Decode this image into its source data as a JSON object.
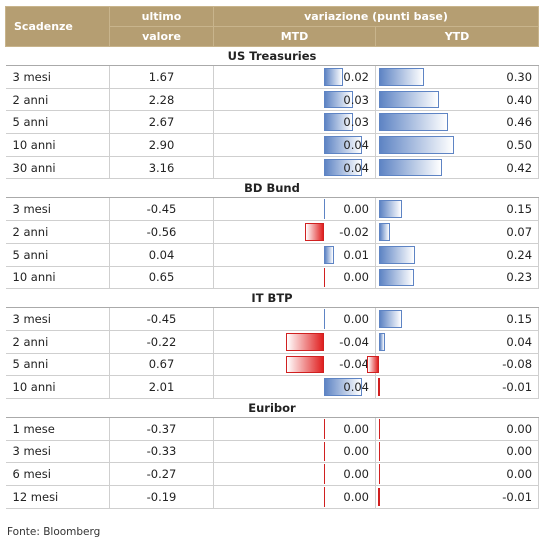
{
  "header": {
    "scadenze": "Scadenze",
    "ultimo": "ultimo",
    "valore": "valore",
    "variazione": "variazione (punti base)",
    "mtd": "MTD",
    "ytd": "YTD"
  },
  "bar_colors": {
    "positive": "#5e84c4",
    "negative": "#e02020"
  },
  "sections": [
    {
      "title": "US Treasuries",
      "rows": [
        {
          "name": "3 mesi",
          "value": "1.67",
          "mtd": "0.02",
          "ytd": "0.30"
        },
        {
          "name": "2 anni",
          "value": "2.28",
          "mtd": "0.03",
          "ytd": "0.40"
        },
        {
          "name": "5 anni",
          "value": "2.67",
          "mtd": "0.03",
          "ytd": "0.46"
        },
        {
          "name": "10 anni",
          "value": "2.90",
          "mtd": "0.04",
          "ytd": "0.50"
        },
        {
          "name": "30 anni",
          "value": "3.16",
          "mtd": "0.04",
          "ytd": "0.42"
        }
      ]
    },
    {
      "title": "BD Bund",
      "rows": [
        {
          "name": "3 mesi",
          "value": "-0.45",
          "mtd": "0.00",
          "ytd": "0.15"
        },
        {
          "name": "2 anni",
          "value": "-0.56",
          "mtd": "-0.02",
          "ytd": "0.07"
        },
        {
          "name": "5 anni",
          "value": "0.04",
          "mtd": "0.01",
          "ytd": "0.24"
        },
        {
          "name": "10 anni",
          "value": "0.65",
          "mtd": "0.00",
          "ytd": "0.23"
        }
      ]
    },
    {
      "title": "IT BTP",
      "rows": [
        {
          "name": "3 mesi",
          "value": "-0.45",
          "mtd": "0.00",
          "ytd": "0.15"
        },
        {
          "name": "2 anni",
          "value": "-0.22",
          "mtd": "-0.04",
          "ytd": "0.04"
        },
        {
          "name": "5 anni",
          "value": "0.67",
          "mtd": "-0.04",
          "ytd": "-0.08"
        },
        {
          "name": "10 anni",
          "value": "2.01",
          "mtd": "0.04",
          "ytd": "-0.01"
        }
      ]
    },
    {
      "title": "Euribor",
      "rows": [
        {
          "name": "1 mese",
          "value": "-0.37",
          "mtd": "0.00",
          "ytd": "0.00"
        },
        {
          "name": "3 mesi",
          "value": "-0.33",
          "mtd": "0.00",
          "ytd": "0.00"
        },
        {
          "name": "6 mesi",
          "value": "-0.27",
          "mtd": "0.00",
          "ytd": "0.00"
        },
        {
          "name": "12 mesi",
          "value": "-0.19",
          "mtd": "0.00",
          "ytd": "-0.01"
        }
      ]
    }
  ],
  "footer": "Fonte: Bloomberg"
}
